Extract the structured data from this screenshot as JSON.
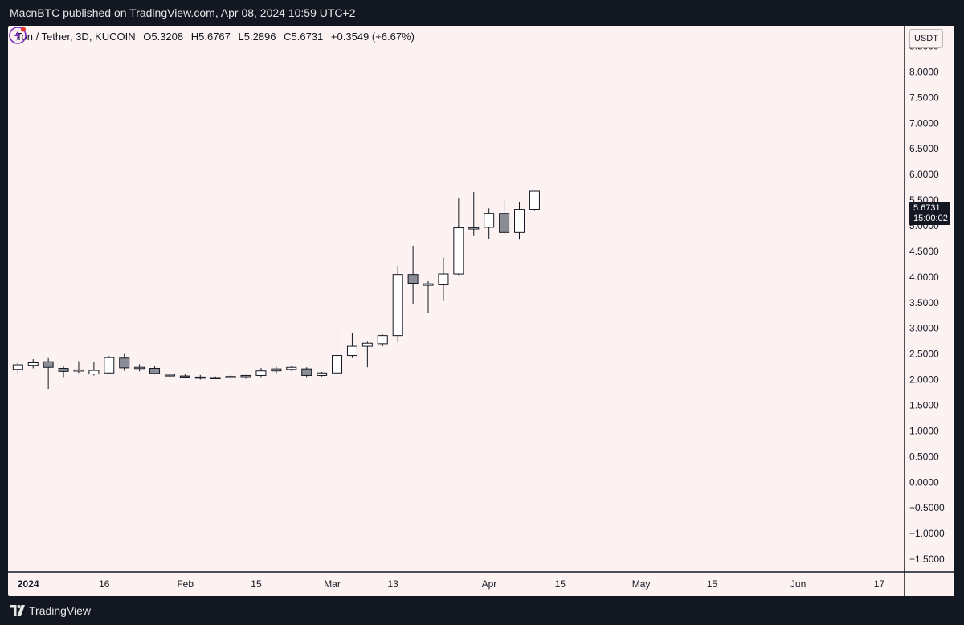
{
  "header": {
    "published_line": "MacnBTC published on TradingView.com, Apr 08, 2024 10:59 UTC+2"
  },
  "legend": {
    "symbol": "Ton / Tether, 3D, KUCOIN",
    "open": "O5.3208",
    "high": "H5.6767",
    "low": "L5.2896",
    "close": "C5.6731",
    "change": "+0.3549 (+6.67%)"
  },
  "price_scale": {
    "unit": "USDT",
    "ticks": [
      "8.5000",
      "8.0000",
      "7.5000",
      "7.0000",
      "6.5000",
      "6.0000",
      "5.5000",
      "5.0000",
      "4.5000",
      "4.0000",
      "3.5000",
      "3.0000",
      "2.5000",
      "2.0000",
      "1.5000",
      "1.0000",
      "0.5000",
      "0.0000",
      "−0.5000",
      "−1.0000",
      "−1.5000"
    ]
  },
  "price_tag": {
    "price": "5.6731",
    "countdown": "15:00:02"
  },
  "footer": {
    "brand": "TradingView"
  },
  "colors": {
    "background": "#131722",
    "pane": "#fdf2f2",
    "candle_up": "#ffffff",
    "candle_down": "#8a8d96",
    "outline": "#131722",
    "bolt": "#7b2fbe",
    "bolt_dot": "#e53935"
  },
  "chart_data": {
    "type": "candlestick",
    "title": "Ton / Tether, 3D, KUCOIN",
    "interval_days": 3,
    "ylim": [
      -1.75,
      8.9
    ],
    "xlim": [
      "2023-12-28",
      "2024-06-22"
    ],
    "x_ticks": [
      {
        "label": "2024",
        "date": "2024-01-01"
      },
      {
        "label": "16",
        "date": "2024-01-16"
      },
      {
        "label": "Feb",
        "date": "2024-02-01"
      },
      {
        "label": "15",
        "date": "2024-02-15"
      },
      {
        "label": "Mar",
        "date": "2024-03-01"
      },
      {
        "label": "13",
        "date": "2024-03-13"
      },
      {
        "label": "Apr",
        "date": "2024-04-01"
      },
      {
        "label": "15",
        "date": "2024-04-15"
      },
      {
        "label": "May",
        "date": "2024-05-01"
      },
      {
        "label": "15",
        "date": "2024-05-15"
      },
      {
        "label": "Jun",
        "date": "2024-06-01"
      },
      {
        "label": "17",
        "date": "2024-06-17"
      }
    ],
    "candles": [
      {
        "date": "2023-12-29",
        "open": 2.2,
        "high": 2.34,
        "low": 2.11,
        "close": 2.29
      },
      {
        "date": "2024-01-01",
        "open": 2.28,
        "high": 2.4,
        "low": 2.22,
        "close": 2.33
      },
      {
        "date": "2024-01-04",
        "open": 2.35,
        "high": 2.42,
        "low": 1.82,
        "close": 2.24
      },
      {
        "date": "2024-01-07",
        "open": 2.22,
        "high": 2.27,
        "low": 2.05,
        "close": 2.16
      },
      {
        "date": "2024-01-10",
        "open": 2.17,
        "high": 2.36,
        "low": 2.13,
        "close": 2.19
      },
      {
        "date": "2024-01-13",
        "open": 2.11,
        "high": 2.35,
        "low": 2.08,
        "close": 2.18
      },
      {
        "date": "2024-01-16",
        "open": 2.13,
        "high": 2.46,
        "low": 2.12,
        "close": 2.43
      },
      {
        "date": "2024-01-19",
        "open": 2.42,
        "high": 2.5,
        "low": 2.17,
        "close": 2.23
      },
      {
        "date": "2024-01-22",
        "open": 2.22,
        "high": 2.3,
        "low": 2.16,
        "close": 2.24
      },
      {
        "date": "2024-01-25",
        "open": 2.22,
        "high": 2.27,
        "low": 2.1,
        "close": 2.12
      },
      {
        "date": "2024-01-28",
        "open": 2.11,
        "high": 2.14,
        "low": 2.04,
        "close": 2.07
      },
      {
        "date": "2024-01-31",
        "open": 2.07,
        "high": 2.1,
        "low": 2.03,
        "close": 2.06
      },
      {
        "date": "2024-02-03",
        "open": 2.05,
        "high": 2.09,
        "low": 2.0,
        "close": 2.03
      },
      {
        "date": "2024-02-06",
        "open": 2.03,
        "high": 2.06,
        "low": 2.01,
        "close": 2.04
      },
      {
        "date": "2024-02-09",
        "open": 2.04,
        "high": 2.08,
        "low": 2.02,
        "close": 2.06
      },
      {
        "date": "2024-02-12",
        "open": 2.06,
        "high": 2.09,
        "low": 2.02,
        "close": 2.08
      },
      {
        "date": "2024-02-15",
        "open": 2.08,
        "high": 2.23,
        "low": 2.05,
        "close": 2.17
      },
      {
        "date": "2024-02-18",
        "open": 2.17,
        "high": 2.25,
        "low": 2.11,
        "close": 2.21
      },
      {
        "date": "2024-02-21",
        "open": 2.2,
        "high": 2.26,
        "low": 2.17,
        "close": 2.24
      },
      {
        "date": "2024-02-24",
        "open": 2.21,
        "high": 2.24,
        "low": 2.05,
        "close": 2.08
      },
      {
        "date": "2024-02-27",
        "open": 2.08,
        "high": 2.15,
        "low": 2.06,
        "close": 2.13
      },
      {
        "date": "2024-03-01",
        "open": 2.13,
        "high": 2.97,
        "low": 2.12,
        "close": 2.47
      },
      {
        "date": "2024-03-04",
        "open": 2.47,
        "high": 2.9,
        "low": 2.42,
        "close": 2.65
      },
      {
        "date": "2024-03-07",
        "open": 2.65,
        "high": 2.74,
        "low": 2.24,
        "close": 2.71
      },
      {
        "date": "2024-03-10",
        "open": 2.7,
        "high": 2.88,
        "low": 2.65,
        "close": 2.86
      },
      {
        "date": "2024-03-13",
        "open": 2.86,
        "high": 4.22,
        "low": 2.73,
        "close": 4.05
      },
      {
        "date": "2024-03-16",
        "open": 4.05,
        "high": 4.61,
        "low": 3.48,
        "close": 3.88
      },
      {
        "date": "2024-03-19",
        "open": 3.84,
        "high": 3.92,
        "low": 3.3,
        "close": 3.87
      },
      {
        "date": "2024-03-22",
        "open": 3.85,
        "high": 4.38,
        "low": 3.53,
        "close": 4.06
      },
      {
        "date": "2024-03-25",
        "open": 4.06,
        "high": 5.53,
        "low": 4.04,
        "close": 4.96
      },
      {
        "date": "2024-03-28",
        "open": 4.95,
        "high": 5.66,
        "low": 4.8,
        "close": 4.96
      },
      {
        "date": "2024-03-31",
        "open": 4.97,
        "high": 5.34,
        "low": 4.75,
        "close": 5.24
      },
      {
        "date": "2024-04-03",
        "open": 5.24,
        "high": 5.5,
        "low": 4.85,
        "close": 4.87
      },
      {
        "date": "2024-04-06",
        "open": 4.87,
        "high": 5.46,
        "low": 4.73,
        "close": 5.32
      },
      {
        "date": "2024-04-09",
        "open": 5.3208,
        "high": 5.6767,
        "low": 5.2896,
        "close": 5.6731
      }
    ],
    "last_price": 5.6731,
    "grid": false
  }
}
